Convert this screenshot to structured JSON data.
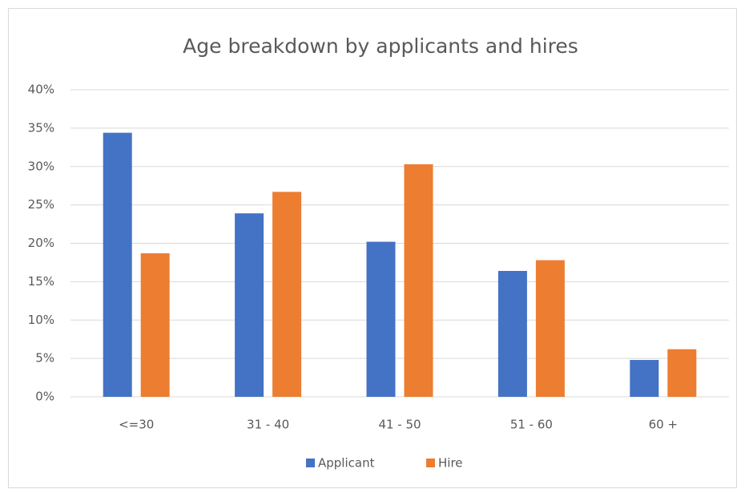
{
  "chart_data": {
    "type": "bar",
    "title": "Age breakdown by applicants and hires",
    "categories": [
      "<=30",
      "31 - 40",
      "41 - 50",
      "51 - 60",
      "60 +"
    ],
    "series": [
      {
        "name": "Applicant",
        "color": "#4472c4",
        "values": [
          34.4,
          23.9,
          20.2,
          16.4,
          4.8
        ]
      },
      {
        "name": "Hire",
        "color": "#ed7d31",
        "values": [
          18.7,
          26.7,
          30.3,
          17.8,
          6.2
        ]
      }
    ],
    "ylim": [
      0,
      40
    ],
    "yticks": [
      {
        "value": 0,
        "label": "0%"
      },
      {
        "value": 5,
        "label": "5%"
      },
      {
        "value": 10,
        "label": "10%"
      },
      {
        "value": 15,
        "label": "15%"
      },
      {
        "value": 20,
        "label": "20%"
      },
      {
        "value": 25,
        "label": "25%"
      },
      {
        "value": 30,
        "label": "30%"
      },
      {
        "value": 35,
        "label": "35%"
      },
      {
        "value": 40,
        "label": "40%"
      }
    ],
    "grid": true,
    "legend": "bottom"
  }
}
